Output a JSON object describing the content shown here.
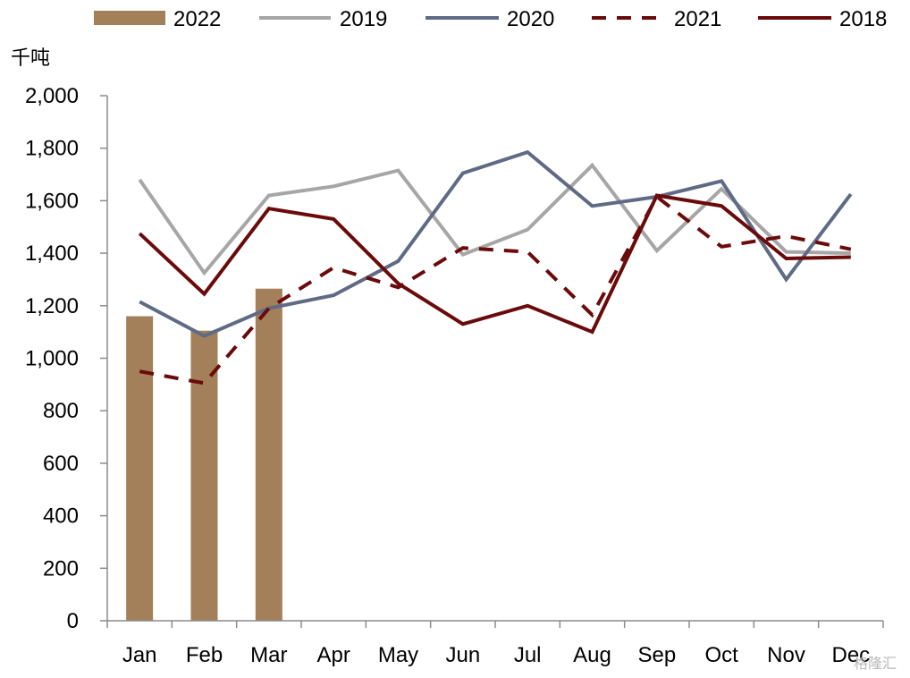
{
  "chart_data": {
    "type": "bar+line",
    "unit": "千吨",
    "categories": [
      "Jan",
      "Feb",
      "Mar",
      "Apr",
      "May",
      "Jun",
      "Jul",
      "Aug",
      "Sep",
      "Oct",
      "Nov",
      "Dec"
    ],
    "ylim": [
      0,
      2000
    ],
    "yticks": [
      0,
      200,
      400,
      600,
      800,
      1000,
      1200,
      1400,
      1600,
      1800,
      2000
    ],
    "ytick_labels": [
      "0",
      "200",
      "400",
      "600",
      "800",
      "1,000",
      "1,200",
      "1,400",
      "1,600",
      "1,800",
      "2,000"
    ],
    "grid": false,
    "legend_position": "top",
    "series": [
      {
        "name": "2022",
        "kind": "bar",
        "color": "#a37f5a",
        "dash": false,
        "values": [
          1160,
          1105,
          1265,
          null,
          null,
          null,
          null,
          null,
          null,
          null,
          null,
          null
        ]
      },
      {
        "name": "2019",
        "kind": "line",
        "color": "#a6a6a6",
        "dash": false,
        "values": [
          1680,
          1325,
          1620,
          1655,
          1715,
          1395,
          1490,
          1735,
          1410,
          1645,
          1405,
          1400
        ]
      },
      {
        "name": "2020",
        "kind": "line",
        "color": "#5f6b85",
        "dash": false,
        "values": [
          1215,
          1085,
          1190,
          1240,
          1370,
          1705,
          1785,
          1580,
          1615,
          1675,
          1300,
          1625
        ]
      },
      {
        "name": "2021",
        "kind": "line",
        "color": "#6b0a0a",
        "dash": true,
        "values": [
          950,
          905,
          1190,
          1345,
          1270,
          1420,
          1405,
          1165,
          1615,
          1425,
          1465,
          1415
        ]
      },
      {
        "name": "2018",
        "kind": "line",
        "color": "#6b0a0a",
        "dash": false,
        "values": [
          1475,
          1245,
          1570,
          1530,
          1285,
          1130,
          1200,
          1100,
          1620,
          1580,
          1380,
          1385
        ]
      }
    ]
  },
  "watermark": "格隆汇"
}
